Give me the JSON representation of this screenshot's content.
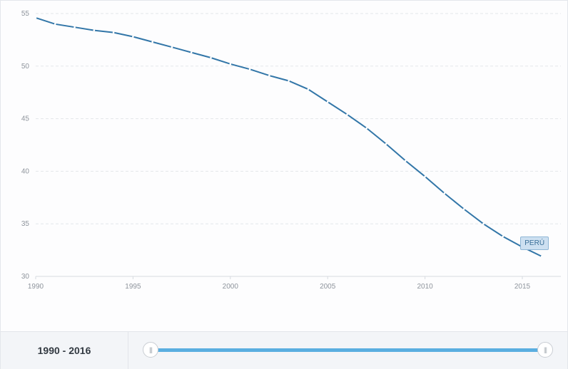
{
  "chart_data": {
    "type": "line",
    "title": "",
    "xlabel": "",
    "ylabel": "",
    "xlim": [
      1990,
      2016
    ],
    "ylim": [
      30,
      55
    ],
    "x_ticks": [
      "1990",
      "1995",
      "2000",
      "2005",
      "2010",
      "2015"
    ],
    "y_ticks": [
      "30",
      "35",
      "40",
      "45",
      "50",
      "55"
    ],
    "grid": true,
    "series": [
      {
        "name": "PERÚ",
        "color": "#3276a8",
        "x": [
          1990,
          1991,
          1992,
          1993,
          1994,
          1995,
          1996,
          1997,
          1998,
          1999,
          2000,
          2001,
          2002,
          2003,
          2004,
          2005,
          2006,
          2007,
          2008,
          2009,
          2010,
          2011,
          2012,
          2013,
          2014,
          2015,
          2016
        ],
        "values": [
          54.6,
          54.0,
          53.7,
          53.4,
          53.2,
          52.8,
          52.3,
          51.8,
          51.3,
          50.8,
          50.2,
          49.7,
          49.1,
          48.6,
          47.8,
          46.6,
          45.4,
          44.1,
          42.6,
          41.0,
          39.5,
          37.9,
          36.4,
          35.0,
          33.8,
          32.8,
          31.9
        ]
      }
    ]
  },
  "footer": {
    "range_label": "1990 - 2016",
    "handle_grip": "|||"
  }
}
